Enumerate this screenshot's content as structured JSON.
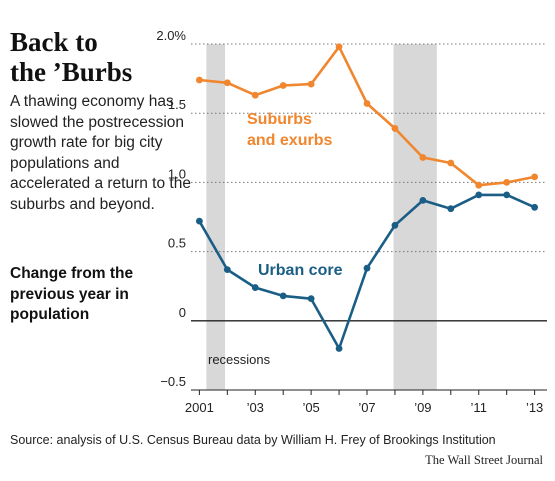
{
  "headline": "Back to the ’Burbs",
  "dek": "A thawing economy has slowed the postrecession growth rate for big city populations and accelerated a return to the suburbs and beyond.",
  "subhead": "Change from the previous year in population",
  "source": "Source: analysis of U.S. Census Bureau data by William H. Frey of Brookings Institution",
  "credit": "The Wall Street Journal",
  "colors": {
    "suburbs": "#f0862e",
    "urban": "#1a5e86",
    "recession": "#d8d8d8"
  },
  "chart_data": {
    "type": "line",
    "x": [
      2001,
      2002,
      2003,
      2004,
      2005,
      2006,
      2007,
      2008,
      2009,
      2010,
      2011,
      2012,
      2013
    ],
    "xticks": [
      {
        "value": 2001,
        "label": "2001"
      },
      {
        "value": 2003,
        "label": "’03"
      },
      {
        "value": 2005,
        "label": "’05"
      },
      {
        "value": 2007,
        "label": "’07"
      },
      {
        "value": 2009,
        "label": "’09"
      },
      {
        "value": 2011,
        "label": "’11"
      },
      {
        "value": 2013,
        "label": "’13"
      }
    ],
    "yticks": [
      {
        "value": 2.0,
        "label": "2.0%"
      },
      {
        "value": 1.5,
        "label": "1.5"
      },
      {
        "value": 1.0,
        "label": "1.0"
      },
      {
        "value": 0.5,
        "label": "0.5"
      },
      {
        "value": 0,
        "label": "0"
      },
      {
        "value": -0.5,
        "label": "−0.5"
      }
    ],
    "ylim": [
      -0.5,
      2.0
    ],
    "xlim": [
      2000.7,
      2013.3
    ],
    "recessions": [
      [
        2001.25,
        2001.92
      ],
      [
        2007.95,
        2009.5
      ]
    ],
    "recessions_label": "recessions",
    "series": [
      {
        "name": "Suburbs and exurbs",
        "label_lines": [
          "Suburbs",
          "and exurbs"
        ],
        "color": "#f0862e",
        "values": [
          1.74,
          1.72,
          1.63,
          1.7,
          1.71,
          1.98,
          1.57,
          1.39,
          1.18,
          1.14,
          0.98,
          1.0,
          1.04
        ]
      },
      {
        "name": "Urban core",
        "label_lines": [
          "Urban core"
        ],
        "color": "#1a5e86",
        "values": [
          0.72,
          0.37,
          0.24,
          0.18,
          0.16,
          -0.2,
          0.38,
          0.69,
          0.87,
          0.81,
          0.91,
          0.91,
          0.82
        ]
      }
    ]
  }
}
